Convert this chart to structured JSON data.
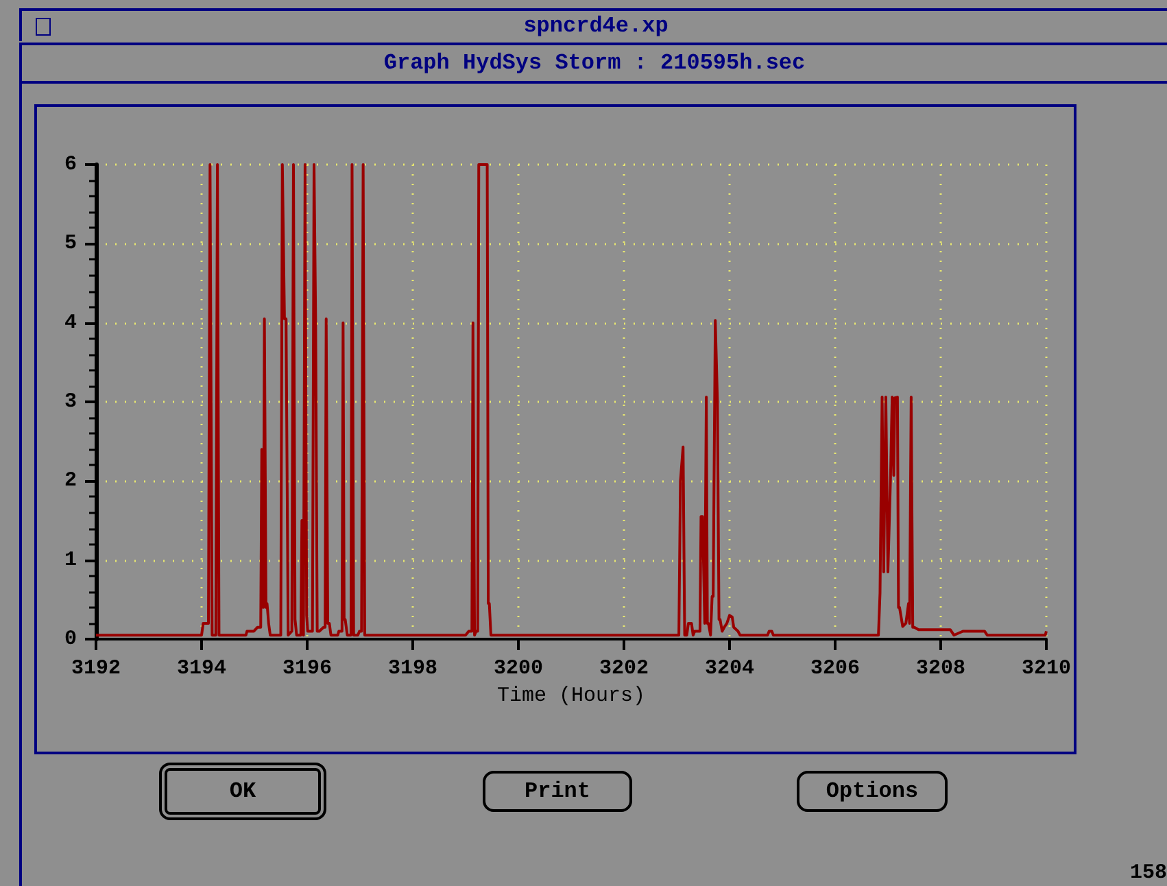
{
  "chart_data": {
    "type": "line",
    "title": "Graph HydSys Storm : 210595h.sec",
    "subtitle": "spncrd4e.xp",
    "xlabel": "Time (Hours)",
    "annotations": [
      "OK",
      "Print",
      "Options",
      "158"
    ],
    "x": [
      3192,
      3194.0,
      3194.03,
      3194.13,
      3194.16,
      3194.2,
      3194.27,
      3194.3,
      3194.33,
      3194.84,
      3194.86,
      3194.99,
      3195.06,
      3195.12,
      3195.14,
      3195.17,
      3195.19,
      3195.22,
      3195.24,
      3195.27,
      3195.3,
      3195.5,
      3195.53,
      3195.57,
      3195.6,
      3195.64,
      3195.71,
      3195.74,
      3195.77,
      3195.8,
      3195.88,
      3195.9,
      3195.93,
      3195.96,
      3195.99,
      3196.01,
      3196.1,
      3196.13,
      3196.16,
      3196.19,
      3196.23,
      3196.31,
      3196.34,
      3196.36,
      3196.39,
      3196.42,
      3196.45,
      3196.58,
      3196.6,
      3196.66,
      3196.68,
      3196.7,
      3196.72,
      3196.76,
      3196.83,
      3196.85,
      3196.88,
      3196.96,
      3196.99,
      3197.03,
      3197.06,
      3197.09,
      3199.0,
      3199.06,
      3199.12,
      3199.14,
      3199.17,
      3199.2,
      3199.23,
      3199.25,
      3199.41,
      3199.43,
      3199.45,
      3199.48,
      3203.04,
      3203.07,
      3203.12,
      3203.15,
      3203.19,
      3203.22,
      3203.28,
      3203.31,
      3203.34,
      3203.44,
      3203.46,
      3203.49,
      3203.53,
      3203.56,
      3203.58,
      3203.6,
      3203.64,
      3203.67,
      3203.69,
      3203.73,
      3203.77,
      3203.8,
      3203.82,
      3203.86,
      3203.9,
      3203.95,
      3204.0,
      3204.05,
      3204.08,
      3204.16,
      3204.2,
      3204.72,
      3204.75,
      3204.8,
      3204.83,
      3206.82,
      3206.85,
      3206.89,
      3206.92,
      3206.96,
      3207.0,
      3207.05,
      3207.08,
      3207.11,
      3207.13,
      3207.18,
      3207.2,
      3207.22,
      3207.28,
      3207.34,
      3207.39,
      3207.41,
      3207.44,
      3207.47,
      3207.5,
      3207.58,
      3208.18,
      3208.25,
      3208.42,
      3208.83,
      3208.88,
      3209.98,
      3210
    ],
    "series": [
      {
        "color": "#990000",
        "values": [
          0.05,
          0.05,
          0.2,
          0.2,
          6,
          0.05,
          0.05,
          6,
          0.05,
          0.05,
          0.1,
          0.1,
          0.15,
          0.15,
          2.4,
          0.4,
          4.05,
          0.4,
          0.45,
          0.2,
          0.05,
          0.05,
          6,
          4.05,
          4.05,
          0.05,
          0.1,
          6,
          0.25,
          0.05,
          0.05,
          1.5,
          0.05,
          6,
          0.3,
          0.1,
          0.1,
          6,
          4.05,
          0.1,
          0.1,
          0.15,
          0.15,
          4.05,
          0.2,
          0.2,
          0.05,
          0.05,
          0.1,
          0.1,
          4,
          0.25,
          0.25,
          0.05,
          0.05,
          6,
          0.05,
          0.05,
          0.1,
          0.1,
          6,
          0.05,
          0.05,
          0.1,
          0.1,
          4,
          0.05,
          0.1,
          0.1,
          6,
          6,
          0.45,
          0.45,
          0.05,
          0.05,
          2,
          2.43,
          0.05,
          0.05,
          0.2,
          0.2,
          0.05,
          0.1,
          0.1,
          1.55,
          1.55,
          0.2,
          3.06,
          0.2,
          0.2,
          0.05,
          0.54,
          0.54,
          4.03,
          3.02,
          0.25,
          0.25,
          0.1,
          0.15,
          0.2,
          0.3,
          0.28,
          0.15,
          0.1,
          0.05,
          0.05,
          0.1,
          0.1,
          0.05,
          0.05,
          0.58,
          3.06,
          0.85,
          3.06,
          0.85,
          2.07,
          3.06,
          2.07,
          3.05,
          3.06,
          0.4,
          0.4,
          0.16,
          0.2,
          0.45,
          0.2,
          3.06,
          0.15,
          0.15,
          0.12,
          0.12,
          0.05,
          0.1,
          0.1,
          0.05,
          0.05,
          0.1
        ]
      }
    ],
    "xlim": [
      3192,
      3210
    ],
    "xticks": [
      3192,
      3194,
      3196,
      3198,
      3200,
      3202,
      3204,
      3206,
      3208,
      3210
    ],
    "ylim": [
      0,
      6
    ],
    "yticks": [
      0,
      1,
      2,
      3,
      4,
      5,
      6
    ],
    "grid": true,
    "marker": "none",
    "line_style": "solid"
  }
}
